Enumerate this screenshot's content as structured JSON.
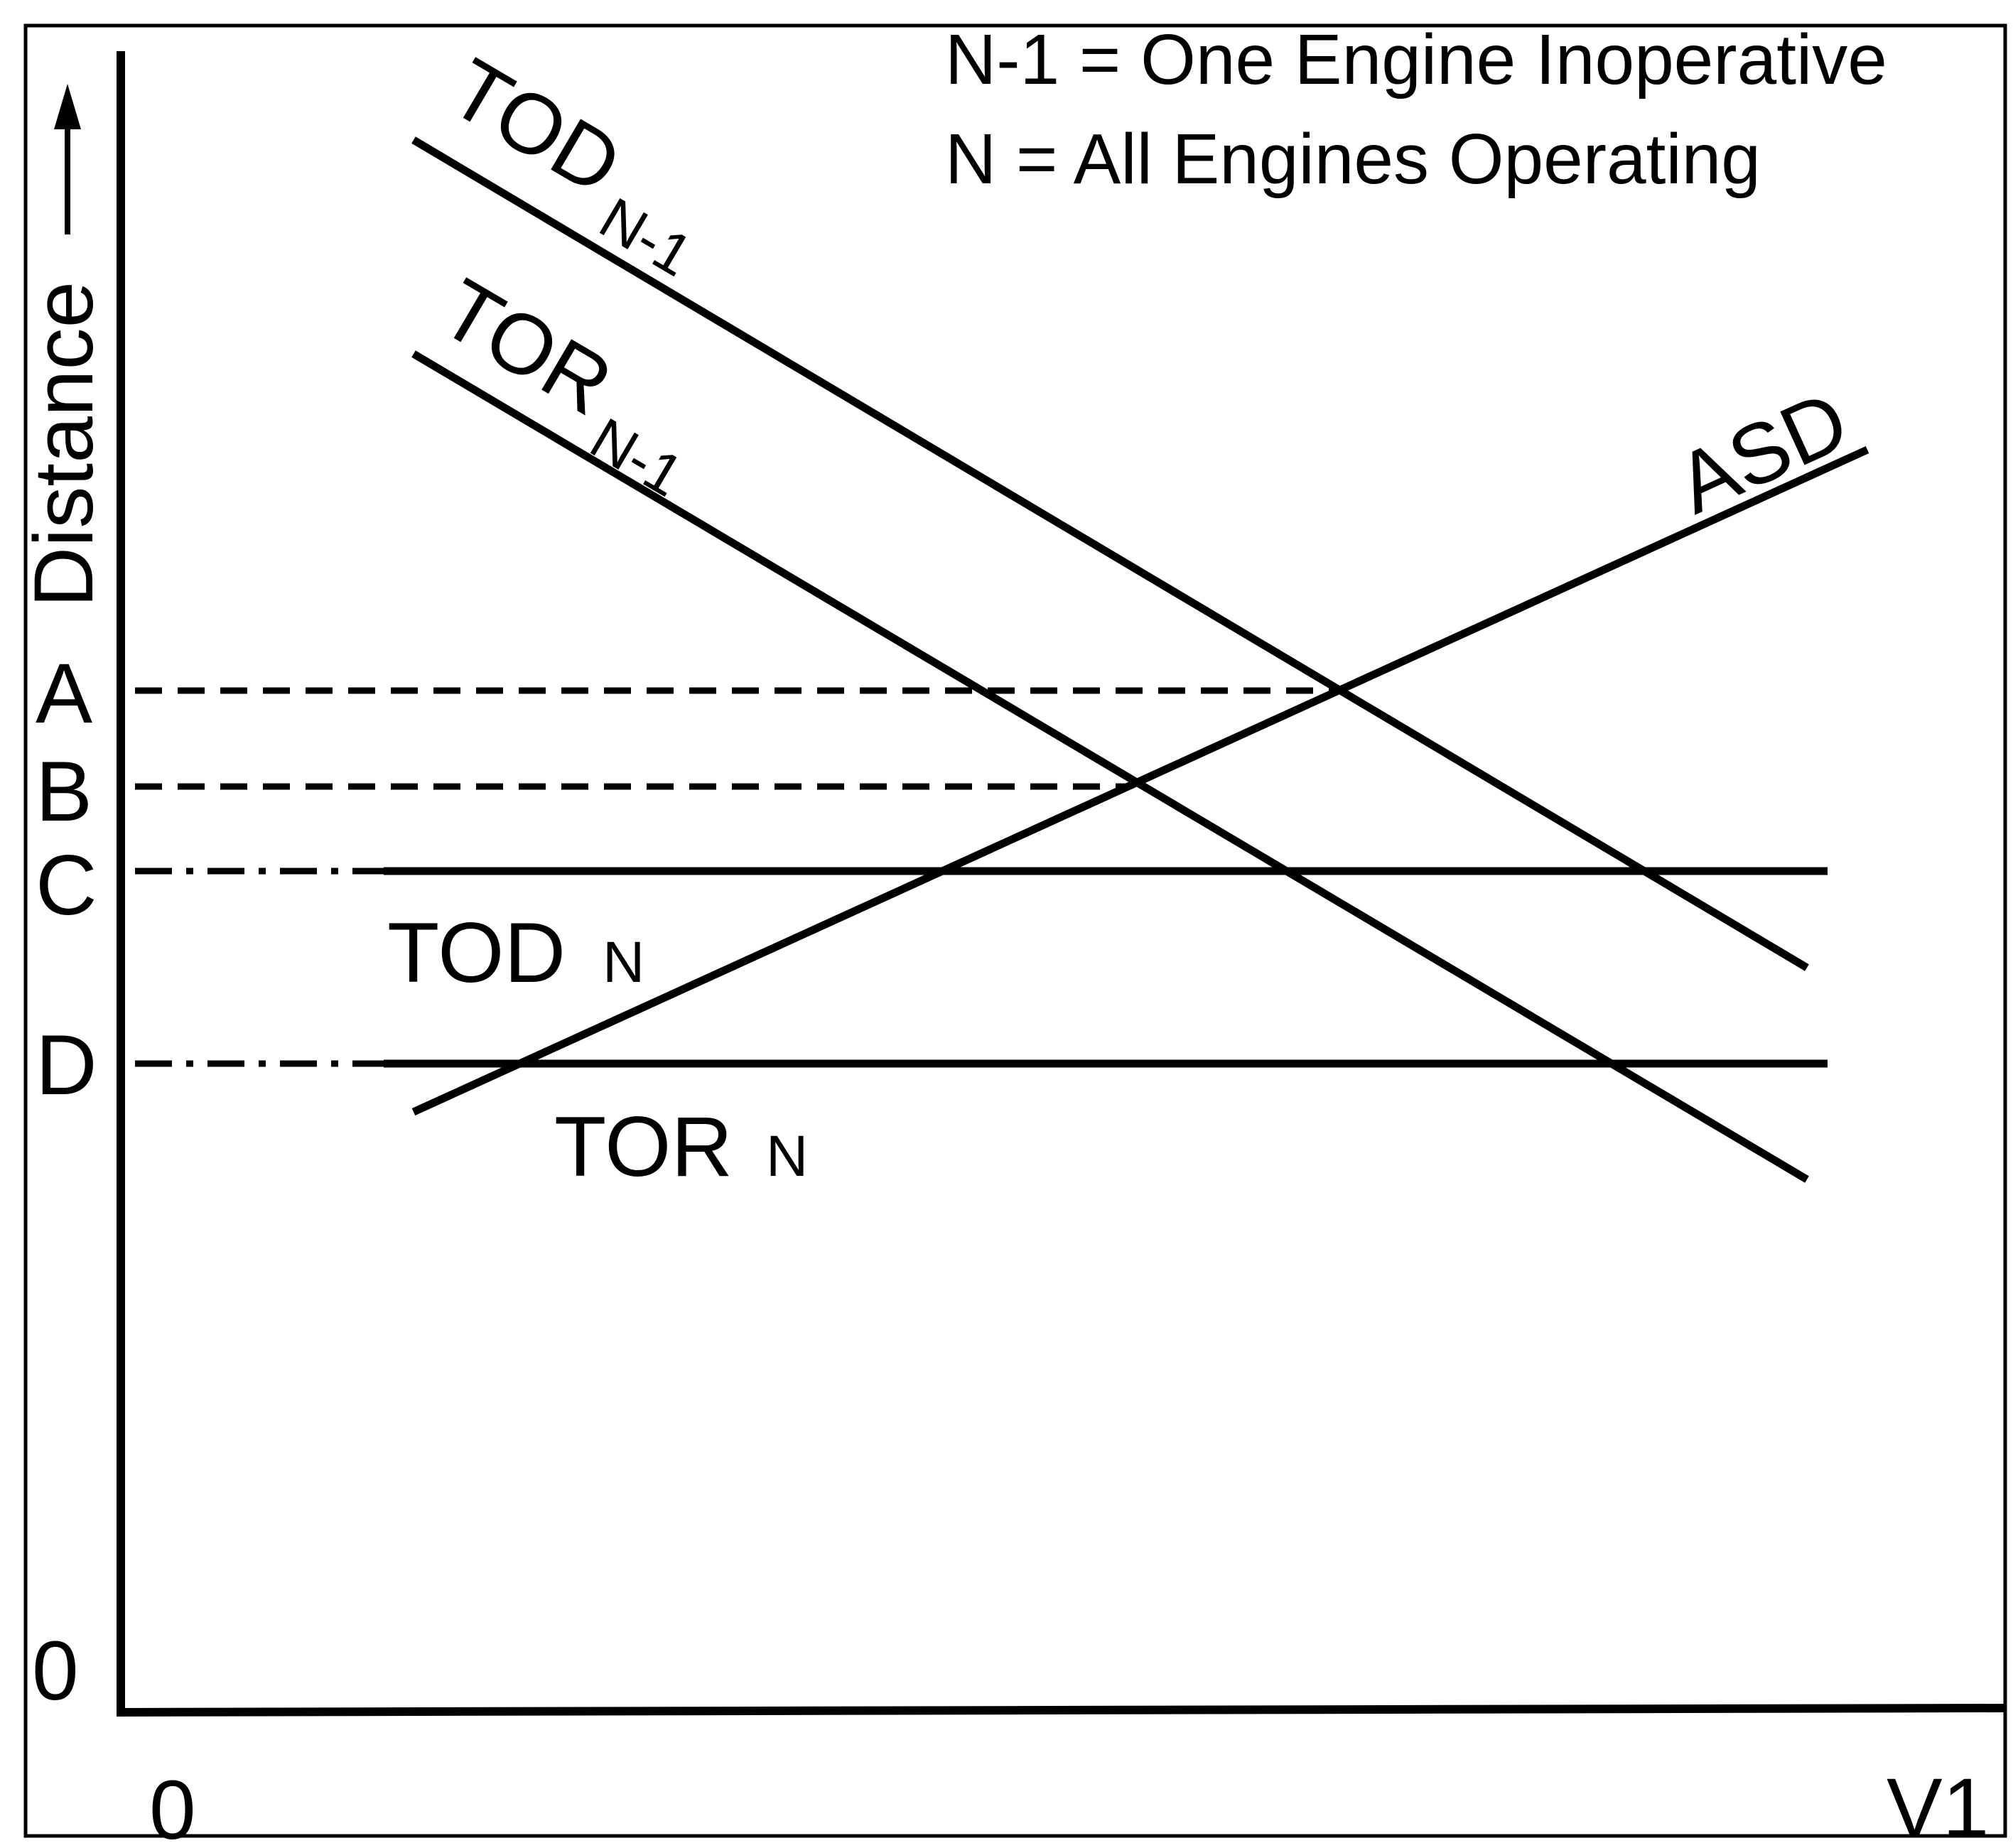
{
  "legend": [
    "N-1 = One Engine Inoperative",
    "N = All Engines Operating"
  ],
  "axes": {
    "y_label": "Distance",
    "x_label": "V1",
    "x_origin": "0",
    "y_origin": "0"
  },
  "levels": [
    "A",
    "B",
    "C",
    "D"
  ],
  "lines": {
    "tod_n1": {
      "main": "TOD",
      "sub": "N-1"
    },
    "tor_n1": {
      "main": "TOR",
      "sub": "N-1"
    },
    "asd": {
      "main": "ASD"
    },
    "tod_n": {
      "main": "TOD",
      "sub": "N"
    },
    "tor_n": {
      "main": "TOR",
      "sub": "N"
    }
  },
  "colors": {
    "ink": "#000000",
    "background": "#ffffff"
  }
}
